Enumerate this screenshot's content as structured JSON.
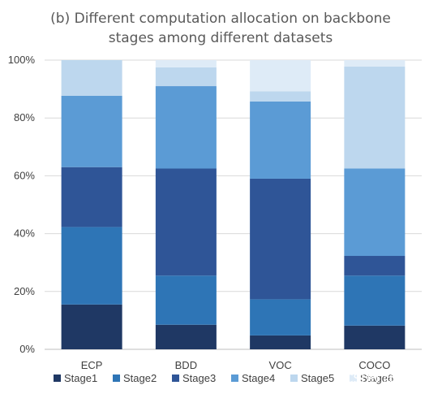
{
  "chart_data": {
    "type": "bar",
    "stacked": true,
    "title": "(b) Different computation allocation on backbone stages among different datasets",
    "title_lines": [
      "(b) Different computation allocation on backbone",
      "stages among different datasets"
    ],
    "categories": [
      "ECP",
      "BDD",
      "VOC",
      "COCO"
    ],
    "yticks": [
      "0%",
      "20%",
      "40%",
      "60%",
      "80%",
      "100%"
    ],
    "ylim": [
      0,
      100
    ],
    "grid": "horizontal",
    "legend_position": "bottom",
    "series": [
      {
        "name": "Stage1",
        "color": "#1f3864",
        "values": [
          15.5,
          8.5,
          4.8,
          8.2
        ]
      },
      {
        "name": "Stage2",
        "color": "#2e75b6",
        "values": [
          26.8,
          17.0,
          12.5,
          17.3
        ]
      },
      {
        "name": "Stage3",
        "color": "#2f5597",
        "values": [
          20.7,
          37.0,
          41.7,
          6.8
        ]
      },
      {
        "name": "Stage4",
        "color": "#5b9bd5",
        "values": [
          24.7,
          28.5,
          26.7,
          30.2
        ]
      },
      {
        "name": "Stage5",
        "color": "#bdd7ee",
        "values": [
          12.3,
          6.5,
          3.5,
          35.3
        ]
      },
      {
        "name": "Stage6",
        "color": "#deebf7",
        "values": [
          0.0,
          2.5,
          10.8,
          2.2
        ]
      }
    ]
  },
  "watermark": "CSDN @若不不"
}
